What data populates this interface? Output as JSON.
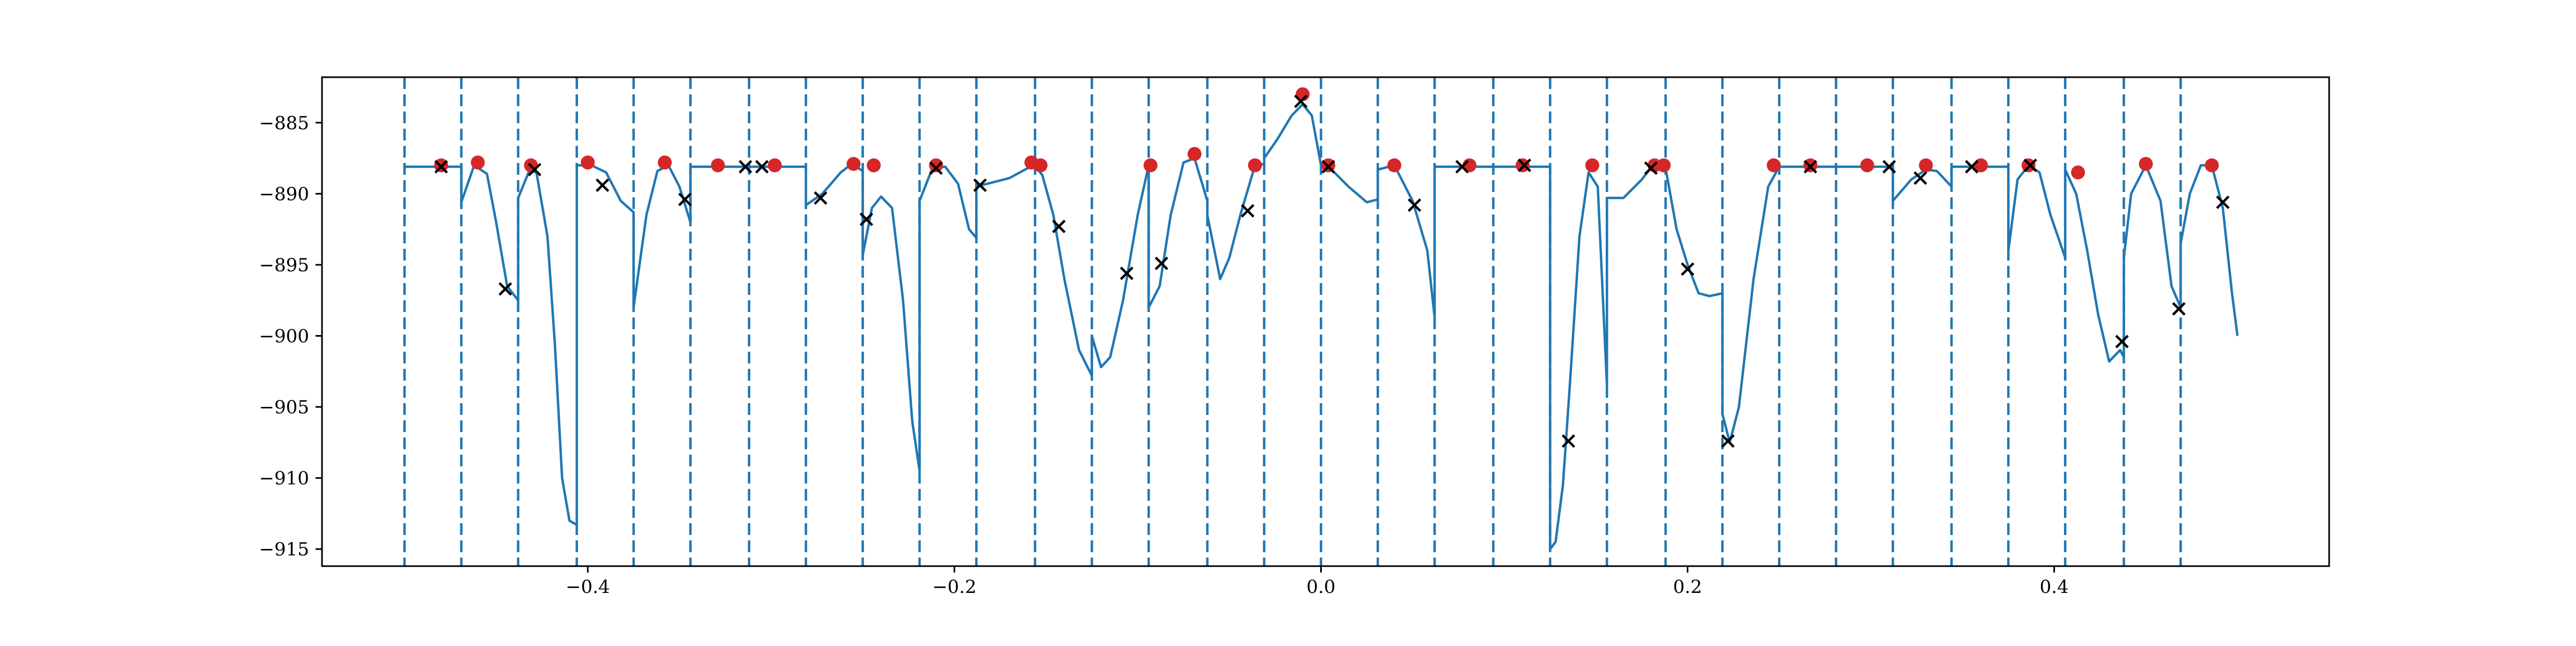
{
  "chart_data": {
    "type": "line",
    "title": "",
    "xlabel": "",
    "ylabel": "",
    "xlim": [
      -0.545,
      0.55
    ],
    "ylim": [
      -916.2,
      -881.8
    ],
    "x_ticks": [
      -0.4,
      -0.2,
      0.0,
      0.2,
      0.4
    ],
    "x_tick_labels": [
      "−0.4",
      "−0.2",
      "0.0",
      "0.2",
      "0.4"
    ],
    "y_ticks": [
      -885,
      -890,
      -895,
      -900,
      -905,
      -910,
      -915
    ],
    "y_tick_labels": [
      "−885",
      "−890",
      "−895",
      "−900",
      "−905",
      "−910",
      "−915"
    ],
    "grid": false,
    "legend": "none",
    "colors": {
      "line": "#1f77b4",
      "vlines": "#1f77b4",
      "red_points": "#d62728",
      "x_markers": "#000000"
    },
    "vertical_dashed_lines_x": [
      -0.5,
      -0.469,
      -0.438,
      -0.406,
      -0.375,
      -0.344,
      -0.312,
      -0.281,
      -0.25,
      -0.219,
      -0.188,
      -0.156,
      -0.125,
      -0.094,
      -0.062,
      -0.031,
      0.0,
      0.031,
      0.062,
      0.094,
      0.125,
      0.156,
      0.188,
      0.219,
      0.25,
      0.281,
      0.312,
      0.344,
      0.375,
      0.406,
      0.438,
      0.469
    ],
    "series": [
      {
        "values_xy": [
          [
            -0.5,
            -888.1
          ],
          [
            -0.469,
            -888.1
          ],
          [
            -0.469,
            -890.6
          ],
          [
            -0.462,
            -888.0
          ],
          [
            -0.455,
            -888.6
          ],
          [
            -0.45,
            -892.0
          ],
          [
            -0.444,
            -896.5
          ],
          [
            -0.438,
            -897.5
          ],
          [
            -0.438,
            -890.3
          ],
          [
            -0.432,
            -888.4
          ],
          [
            -0.428,
            -888.5
          ],
          [
            -0.422,
            -893.0
          ],
          [
            -0.418,
            -900.5
          ],
          [
            -0.414,
            -910.0
          ],
          [
            -0.41,
            -913.0
          ],
          [
            -0.406,
            -913.3
          ],
          [
            -0.406,
            -888.0
          ],
          [
            -0.398,
            -888.0
          ],
          [
            -0.39,
            -888.5
          ],
          [
            -0.382,
            -890.5
          ],
          [
            -0.375,
            -891.3
          ],
          [
            -0.375,
            -898.0
          ],
          [
            -0.368,
            -891.5
          ],
          [
            -0.362,
            -888.4
          ],
          [
            -0.356,
            -888.0
          ],
          [
            -0.35,
            -889.5
          ],
          [
            -0.344,
            -892.0
          ],
          [
            -0.344,
            -888.1
          ],
          [
            -0.281,
            -888.1
          ],
          [
            -0.281,
            -890.8
          ],
          [
            -0.272,
            -890.0
          ],
          [
            -0.262,
            -888.5
          ],
          [
            -0.256,
            -887.9
          ],
          [
            -0.25,
            -888.4
          ],
          [
            -0.25,
            -894.3
          ],
          [
            -0.245,
            -891.0
          ],
          [
            -0.24,
            -890.2
          ],
          [
            -0.234,
            -891.0
          ],
          [
            -0.228,
            -897.5
          ],
          [
            -0.223,
            -906.0
          ],
          [
            -0.219,
            -909.5
          ],
          [
            -0.219,
            -890.5
          ],
          [
            -0.212,
            -888.2
          ],
          [
            -0.205,
            -888.1
          ],
          [
            -0.198,
            -889.3
          ],
          [
            -0.192,
            -892.5
          ],
          [
            -0.188,
            -893.1
          ],
          [
            -0.188,
            -889.5
          ],
          [
            -0.17,
            -888.9
          ],
          [
            -0.16,
            -888.2
          ],
          [
            -0.156,
            -888.0
          ],
          [
            -0.152,
            -888.7
          ],
          [
            -0.146,
            -891.5
          ],
          [
            -0.14,
            -896.0
          ],
          [
            -0.132,
            -901.0
          ],
          [
            -0.125,
            -902.8
          ],
          [
            -0.125,
            -900.0
          ],
          [
            -0.12,
            -902.2
          ],
          [
            -0.115,
            -901.5
          ],
          [
            -0.108,
            -897.5
          ],
          [
            -0.1,
            -891.5
          ],
          [
            -0.094,
            -888.0
          ],
          [
            -0.094,
            -898.0
          ],
          [
            -0.088,
            -896.5
          ],
          [
            -0.082,
            -891.5
          ],
          [
            -0.075,
            -887.8
          ],
          [
            -0.069,
            -887.5
          ],
          [
            -0.062,
            -890.5
          ],
          [
            -0.062,
            -891.5
          ],
          [
            -0.055,
            -896.0
          ],
          [
            -0.05,
            -894.5
          ],
          [
            -0.044,
            -891.5
          ],
          [
            -0.036,
            -888.0
          ],
          [
            -0.031,
            -887.9
          ],
          [
            -0.031,
            -887.5
          ],
          [
            -0.024,
            -886.2
          ],
          [
            -0.016,
            -884.5
          ],
          [
            -0.01,
            -883.7
          ],
          [
            -0.005,
            -884.5
          ],
          [
            0.0,
            -888.0
          ],
          [
            0.005,
            -888.2
          ],
          [
            0.015,
            -889.5
          ],
          [
            0.025,
            -890.6
          ],
          [
            0.031,
            -890.4
          ],
          [
            0.031,
            -888.3
          ],
          [
            0.04,
            -888.0
          ],
          [
            0.05,
            -890.5
          ],
          [
            0.058,
            -894.0
          ],
          [
            0.062,
            -898.7
          ],
          [
            0.062,
            -888.1
          ],
          [
            0.125,
            -888.1
          ],
          [
            0.125,
            -915.0
          ],
          [
            0.128,
            -914.5
          ],
          [
            0.132,
            -910.5
          ],
          [
            0.136,
            -903.0
          ],
          [
            0.141,
            -893.0
          ],
          [
            0.146,
            -888.5
          ],
          [
            0.151,
            -889.5
          ],
          [
            0.156,
            -903.5
          ],
          [
            0.156,
            -890.3
          ],
          [
            0.165,
            -890.3
          ],
          [
            0.175,
            -889.0
          ],
          [
            0.181,
            -888.0
          ],
          [
            0.188,
            -888.2
          ],
          [
            0.194,
            -892.5
          ],
          [
            0.2,
            -895.0
          ],
          [
            0.206,
            -897.0
          ],
          [
            0.212,
            -897.2
          ],
          [
            0.219,
            -897.0
          ],
          [
            0.219,
            -905.5
          ],
          [
            0.223,
            -907.5
          ],
          [
            0.228,
            -905.0
          ],
          [
            0.236,
            -896.0
          ],
          [
            0.244,
            -889.5
          ],
          [
            0.25,
            -888.1
          ],
          [
            0.312,
            -888.1
          ],
          [
            0.312,
            -890.5
          ],
          [
            0.322,
            -889.0
          ],
          [
            0.33,
            -888.3
          ],
          [
            0.336,
            -888.4
          ],
          [
            0.344,
            -889.5
          ],
          [
            0.344,
            -888.1
          ],
          [
            0.375,
            -888.1
          ],
          [
            0.375,
            -894.0
          ],
          [
            0.38,
            -889.0
          ],
          [
            0.386,
            -888.0
          ],
          [
            0.392,
            -888.5
          ],
          [
            0.398,
            -891.5
          ],
          [
            0.406,
            -894.5
          ],
          [
            0.406,
            -888.3
          ],
          [
            0.412,
            -890.0
          ],
          [
            0.418,
            -894.0
          ],
          [
            0.424,
            -898.5
          ],
          [
            0.43,
            -901.8
          ],
          [
            0.436,
            -901.0
          ],
          [
            0.438,
            -901.5
          ],
          [
            0.438,
            -894.5
          ],
          [
            0.442,
            -890.0
          ],
          [
            0.45,
            -888.0
          ],
          [
            0.458,
            -890.5
          ],
          [
            0.464,
            -896.5
          ],
          [
            0.469,
            -898.0
          ],
          [
            0.469,
            -893.5
          ],
          [
            0.474,
            -890.0
          ],
          [
            0.48,
            -888.0
          ],
          [
            0.486,
            -888.0
          ],
          [
            0.492,
            -891.0
          ],
          [
            0.497,
            -897.0
          ],
          [
            0.5,
            -900.0
          ]
        ]
      }
    ],
    "red_points": [
      [
        -0.48,
        -888.0
      ],
      [
        -0.46,
        -887.8
      ],
      [
        -0.431,
        -888.0
      ],
      [
        -0.4,
        -887.8
      ],
      [
        -0.358,
        -887.8
      ],
      [
        -0.329,
        -888.0
      ],
      [
        -0.298,
        -888.0
      ],
      [
        -0.255,
        -887.9
      ],
      [
        -0.244,
        -888.0
      ],
      [
        -0.21,
        -888.0
      ],
      [
        -0.158,
        -887.8
      ],
      [
        -0.153,
        -888.0
      ],
      [
        -0.093,
        -888.0
      ],
      [
        -0.069,
        -887.2
      ],
      [
        -0.036,
        -888.0
      ],
      [
        -0.01,
        -883.0
      ],
      [
        0.004,
        -888.0
      ],
      [
        0.04,
        -888.0
      ],
      [
        0.081,
        -888.0
      ],
      [
        0.11,
        -888.0
      ],
      [
        0.148,
        -888.0
      ],
      [
        0.182,
        -888.0
      ],
      [
        0.187,
        -888.0
      ],
      [
        0.247,
        -888.0
      ],
      [
        0.267,
        -888.0
      ],
      [
        0.298,
        -888.0
      ],
      [
        0.33,
        -888.0
      ],
      [
        0.36,
        -888.0
      ],
      [
        0.386,
        -888.0
      ],
      [
        0.413,
        -888.5
      ],
      [
        0.45,
        -887.9
      ],
      [
        0.486,
        -888.0
      ]
    ],
    "x_markers": [
      [
        -0.48,
        -888.1
      ],
      [
        -0.445,
        -896.7
      ],
      [
        -0.429,
        -888.3
      ],
      [
        -0.392,
        -889.4
      ],
      [
        -0.347,
        -890.4
      ],
      [
        -0.314,
        -888.1
      ],
      [
        -0.305,
        -888.1
      ],
      [
        -0.273,
        -890.3
      ],
      [
        -0.248,
        -891.8
      ],
      [
        -0.21,
        -888.2
      ],
      [
        -0.186,
        -889.4
      ],
      [
        -0.143,
        -892.3
      ],
      [
        -0.106,
        -895.6
      ],
      [
        -0.087,
        -894.9
      ],
      [
        -0.04,
        -891.2
      ],
      [
        -0.011,
        -883.5
      ],
      [
        0.004,
        -888.1
      ],
      [
        0.051,
        -890.8
      ],
      [
        0.077,
        -888.1
      ],
      [
        0.111,
        -888.0
      ],
      [
        0.135,
        -907.4
      ],
      [
        0.18,
        -888.2
      ],
      [
        0.2,
        -895.3
      ],
      [
        0.222,
        -907.4
      ],
      [
        0.267,
        -888.1
      ],
      [
        0.31,
        -888.1
      ],
      [
        0.327,
        -888.9
      ],
      [
        0.355,
        -888.1
      ],
      [
        0.387,
        -888.0
      ],
      [
        0.437,
        -900.4
      ],
      [
        0.468,
        -898.1
      ],
      [
        0.492,
        -890.6
      ]
    ]
  }
}
